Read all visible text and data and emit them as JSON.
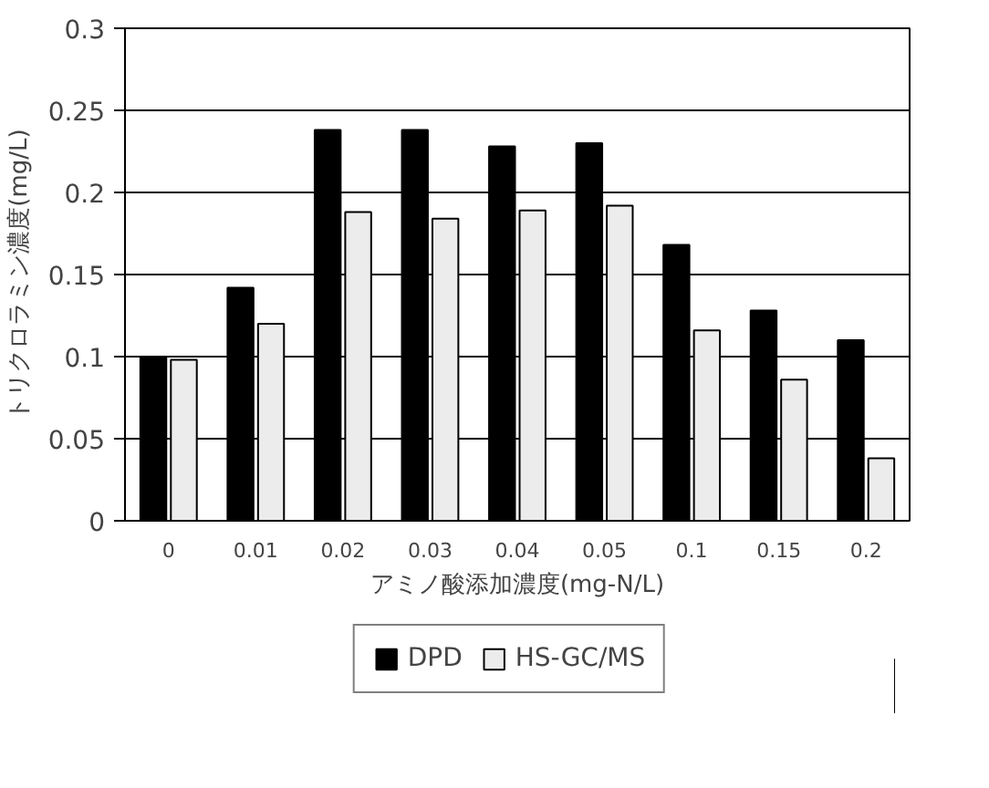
{
  "chart_data": {
    "type": "bar",
    "xlabel": "アミノ酸添加濃度(mg-N/L)",
    "ylabel": "トリクロラミン濃度(mg/L)",
    "categories": [
      "0",
      "0.01",
      "0.02",
      "0.03",
      "0.04",
      "0.05",
      "0.1",
      "0.15",
      "0.2"
    ],
    "series": [
      {
        "name": "DPD",
        "color": "#000000",
        "values": [
          0.1,
          0.142,
          0.238,
          0.238,
          0.228,
          0.23,
          0.168,
          0.128,
          0.11
        ]
      },
      {
        "name": "HS-GC/MS",
        "color": "#ececec",
        "values": [
          0.098,
          0.12,
          0.188,
          0.184,
          0.189,
          0.192,
          0.116,
          0.086,
          0.038
        ]
      }
    ],
    "ylim": [
      0,
      0.3
    ],
    "yticks": [
      0,
      0.05,
      0.1,
      0.15,
      0.2,
      0.25,
      0.3
    ],
    "grid": "y",
    "legend": "bottom"
  }
}
